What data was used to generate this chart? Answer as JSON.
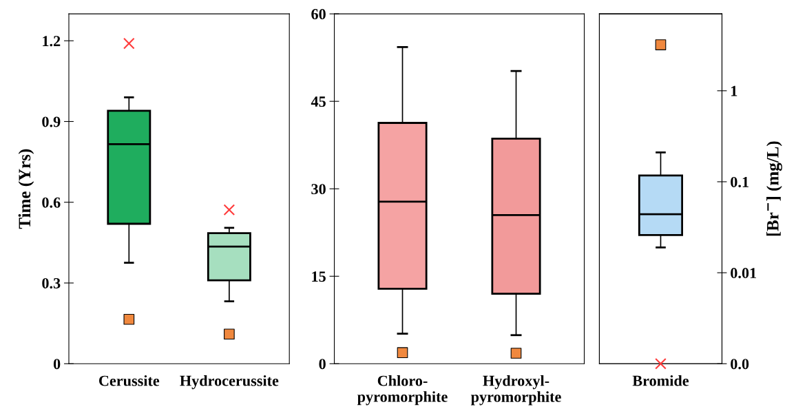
{
  "chart_data": [
    {
      "type": "box",
      "categories": [
        "Cerussite",
        "Hydrocerussite"
      ],
      "ylabel": "Time (Yrs)",
      "ylim": [
        0,
        1.3
      ],
      "yticks": [
        {
          "value": 0,
          "label": "0"
        },
        {
          "value": 0.3,
          "label": "0.3"
        },
        {
          "value": 0.6,
          "label": "0.6"
        },
        {
          "value": 0.9,
          "label": "0.9"
        },
        {
          "value": 1.2,
          "label": "1.2"
        }
      ],
      "grid": false,
      "legend": false,
      "series": [
        {
          "colors": [
            "#1fad5e",
            "#a6dfbf"
          ],
          "boxes": [
            {
              "low": 0.375,
              "q1": 0.52,
              "median": 0.816,
              "q3": 0.94,
              "high": 0.99
            },
            {
              "low": 0.232,
              "q1": 0.31,
              "median": 0.435,
              "q3": 0.485,
              "high": 0.505
            }
          ]
        },
        {
          "type": "scatter",
          "marker": "cross",
          "color": "#ff3b3b",
          "x": [
            "Cerussite",
            "Hydrocerussite"
          ],
          "values": [
            1.19,
            0.572
          ]
        },
        {
          "type": "scatter",
          "marker": "square",
          "color": "#f0883e",
          "x": [
            "Cerussite",
            "Hydrocerussite"
          ],
          "values": [
            0.165,
            0.11
          ]
        }
      ]
    },
    {
      "type": "box",
      "categories": [
        "Chloro-\npyromorphite",
        "Hydroxyl-\npyromorphite"
      ],
      "ylim": [
        0,
        60
      ],
      "yticks": [
        0,
        15,
        30,
        45,
        60
      ],
      "grid": false,
      "legend": false,
      "series": [
        {
          "colors": [
            "#f5a3a3",
            "#f29a9a"
          ],
          "boxes": [
            {
              "low": 5.15,
              "q1": 12.85,
              "median": 27.8,
              "q3": 41.3,
              "high": 54.3
            },
            {
              "low": 4.9,
              "q1": 12.0,
              "median": 25.5,
              "q3": 38.6,
              "high": 50.2
            }
          ]
        },
        {
          "type": "scatter",
          "marker": "square",
          "color": "#f0883e",
          "x": [
            "Chloro-\npyromorphite",
            "Hydroxyl-\npyromorphite"
          ],
          "values": [
            1.9,
            1.8
          ]
        }
      ]
    },
    {
      "type": "box",
      "categories": [
        "Bromide"
      ],
      "y2label": "[Br$^{−}$] (mg/L)",
      "log": "y2",
      "y2lim": [
        0.001,
        7
      ],
      "y2ticks": [
        {
          "value": 0.001,
          "label": "0.0"
        },
        {
          "value": 0.01,
          "label": "0.01"
        },
        {
          "value": 0.1,
          "label": "0.1"
        },
        {
          "value": 1,
          "label": "1"
        }
      ],
      "grid": false,
      "legend": false,
      "series": [
        {
          "axis": "y2",
          "colors": [
            "#b5daf5"
          ],
          "boxes": [
            {
              "low": 0.019,
              "q1": 0.026,
              "median": 0.044,
              "q3": 0.117,
              "high": 0.21
            }
          ]
        },
        {
          "type": "scatter",
          "axis": "y2",
          "marker": "square",
          "color": "#f0883e",
          "x": [
            "Bromide"
          ],
          "values": [
            3.2
          ]
        },
        {
          "type": "scatter",
          "axis": "y2",
          "marker": "cross",
          "color": "#ff3b3b",
          "x": [
            "Bromide"
          ],
          "values": [
            0.001
          ]
        }
      ]
    }
  ]
}
